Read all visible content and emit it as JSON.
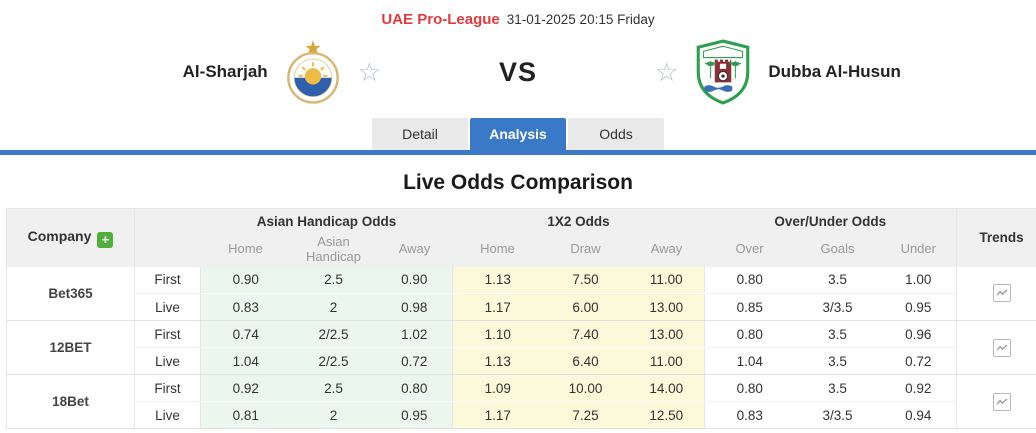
{
  "header": {
    "league": "UAE Pro-League",
    "datetime": "31-01-2025 20:15 Friday"
  },
  "match": {
    "home_team": "Al-Sharjah",
    "away_team": "Dubba Al-Husun",
    "vs_label": "VS"
  },
  "tabs": [
    {
      "label": "Detail",
      "active": false
    },
    {
      "label": "Analysis",
      "active": true
    },
    {
      "label": "Odds",
      "active": false
    }
  ],
  "section_title": "Live Odds Comparison",
  "table": {
    "company_header": "Company",
    "add_company_icon": "plus-icon",
    "trends_header": "Trends",
    "trend_icon": "line-chart-icon",
    "groups": [
      {
        "title": "Asian Handicap Odds",
        "subs": [
          "Home",
          "Asian Handicap",
          "Away"
        ]
      },
      {
        "title": "1X2 Odds",
        "subs": [
          "Home",
          "Draw",
          "Away"
        ]
      },
      {
        "title": "Over/Under Odds",
        "subs": [
          "Over",
          "Goals",
          "Under"
        ]
      }
    ],
    "companies": [
      {
        "name": "Bet365",
        "rows": [
          {
            "stage": "First",
            "asian_handicap": [
              "0.90",
              "2.5",
              "0.90"
            ],
            "x12": [
              "1.13",
              "7.50",
              "11.00"
            ],
            "over_under": [
              "0.80",
              "3.5",
              "1.00"
            ]
          },
          {
            "stage": "Live",
            "asian_handicap": [
              "0.83",
              "2",
              "0.98"
            ],
            "x12": [
              "1.17",
              "6.00",
              "13.00"
            ],
            "over_under": [
              "0.85",
              "3/3.5",
              "0.95"
            ]
          }
        ]
      },
      {
        "name": "12BET",
        "rows": [
          {
            "stage": "First",
            "asian_handicap": [
              "0.74",
              "2/2.5",
              "1.02"
            ],
            "x12": [
              "1.10",
              "7.40",
              "13.00"
            ],
            "over_under": [
              "0.80",
              "3.5",
              "0.96"
            ]
          },
          {
            "stage": "Live",
            "asian_handicap": [
              "1.04",
              "2/2.5",
              "0.72"
            ],
            "x12": [
              "1.13",
              "6.40",
              "11.00"
            ],
            "over_under": [
              "1.04",
              "3.5",
              "0.72"
            ]
          }
        ]
      },
      {
        "name": "18Bet",
        "rows": [
          {
            "stage": "First",
            "asian_handicap": [
              "0.92",
              "2.5",
              "0.80"
            ],
            "x12": [
              "1.09",
              "10.00",
              "14.00"
            ],
            "over_under": [
              "0.80",
              "3.5",
              "0.92"
            ]
          },
          {
            "stage": "Live",
            "asian_handicap": [
              "0.81",
              "2",
              "0.95"
            ],
            "x12": [
              "1.17",
              "7.25",
              "12.50"
            ],
            "over_under": [
              "0.83",
              "3/3.5",
              "0.94"
            ]
          }
        ]
      }
    ]
  },
  "colors": {
    "accent_red": "#df3a3e",
    "accent_blue": "#3a78c8",
    "asian_handicap_cell_bg": "#ebf6ef",
    "x12_cell_bg": "#fcf8da",
    "add_button_green": "#4fae3c"
  }
}
